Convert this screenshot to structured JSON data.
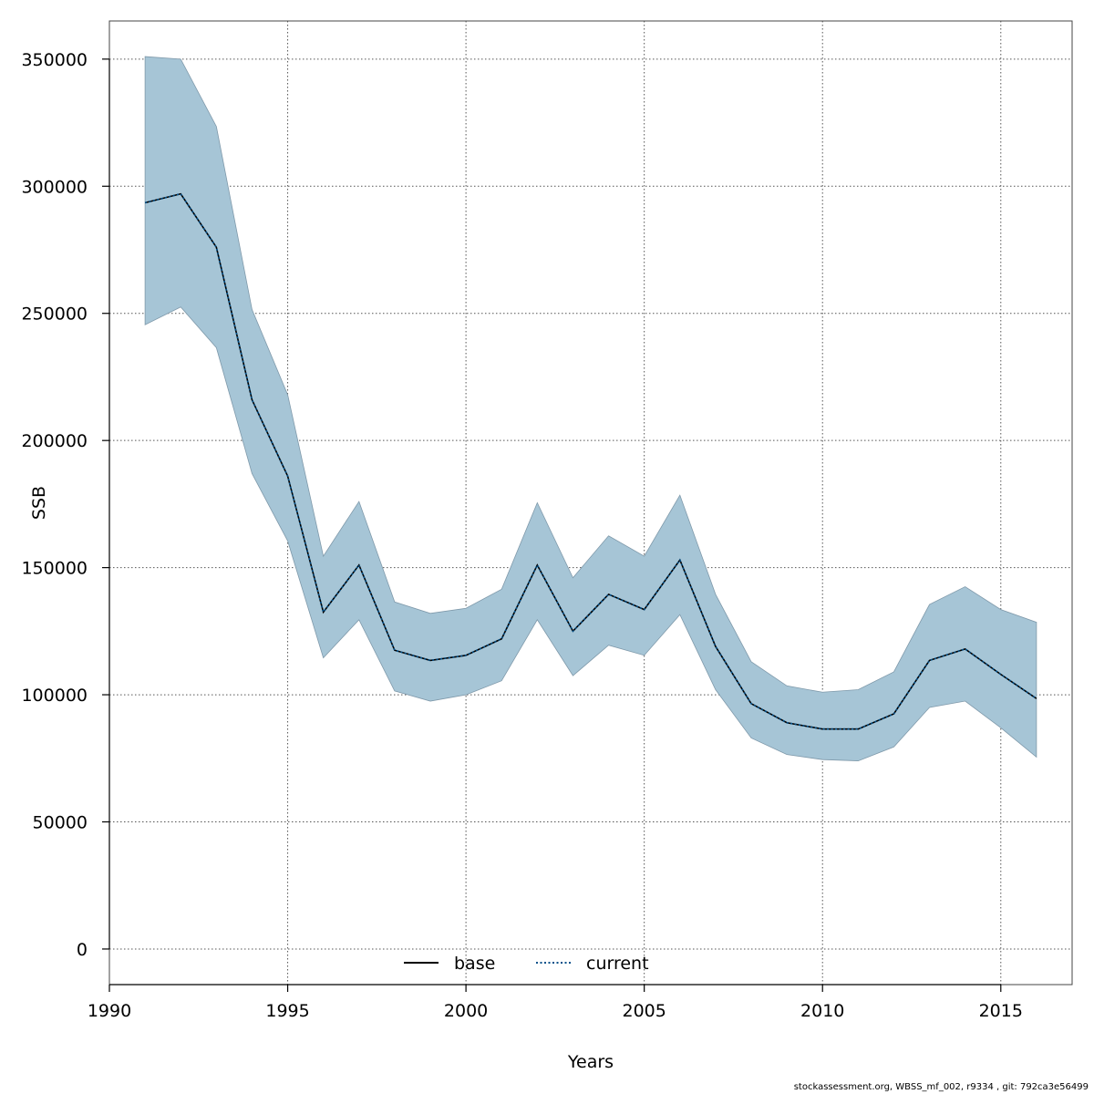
{
  "chart_data": {
    "type": "line",
    "xlabel": "Years",
    "ylabel": "SSB",
    "xlim": [
      1990,
      2017
    ],
    "ylim": [
      -14000,
      365000
    ],
    "x_ticks": [
      1990,
      1995,
      2000,
      2005,
      2010,
      2015
    ],
    "y_ticks": [
      0,
      50000,
      100000,
      150000,
      200000,
      250000,
      300000,
      350000
    ],
    "x_tick_labels": [
      "1990",
      "1995",
      "2000",
      "2005",
      "2010",
      "2015"
    ],
    "y_tick_labels": [
      "0",
      "50000",
      "100000",
      "150000",
      "200000",
      "250000",
      "300000",
      "350000"
    ],
    "grid": true,
    "legend_position": "bottom",
    "x": [
      1991,
      1992,
      1993,
      1994,
      1995,
      1996,
      1997,
      1998,
      1999,
      2000,
      2001,
      2002,
      2003,
      2004,
      2005,
      2006,
      2007,
      2008,
      2009,
      2010,
      2011,
      2012,
      2013,
      2014,
      2015,
      2016
    ],
    "series": [
      {
        "name": "base",
        "style": "solid",
        "color": "#000000",
        "values": [
          293500,
          297000,
          276000,
          216000,
          186000,
          132500,
          151000,
          117500,
          113500,
          115500,
          122000,
          151000,
          125000,
          139500,
          133500,
          153000,
          119000,
          96500,
          89000,
          86500,
          86500,
          92500,
          113500,
          118000,
          108000,
          98500
        ]
      },
      {
        "name": "current",
        "style": "dotted",
        "color": "#00508a",
        "values": [
          293500,
          297000,
          276000,
          216000,
          186000,
          132500,
          151000,
          117500,
          113500,
          115500,
          122000,
          151000,
          125000,
          139500,
          133500,
          153000,
          119000,
          96500,
          89000,
          86500,
          86500,
          92500,
          113500,
          118000,
          108000,
          98500
        ]
      }
    ],
    "confidence_band": {
      "color": "#a6c5d6",
      "upper": [
        351000,
        350000,
        323500,
        251500,
        218000,
        154500,
        176000,
        136500,
        132000,
        134000,
        141500,
        175500,
        146000,
        162500,
        154500,
        178500,
        139500,
        113000,
        103500,
        101000,
        102000,
        109000,
        135500,
        142500,
        133500,
        128500
      ],
      "lower": [
        245500,
        252500,
        236500,
        187000,
        160500,
        114500,
        129500,
        101500,
        97500,
        100000,
        105500,
        129500,
        107500,
        119500,
        115500,
        131500,
        102000,
        83000,
        76500,
        74500,
        74000,
        79500,
        95000,
        97500,
        87000,
        75500
      ]
    }
  },
  "footer": {
    "text": "stockassessment.org, WBSS_mf_002, r9334 , git: 792ca3e56499"
  }
}
